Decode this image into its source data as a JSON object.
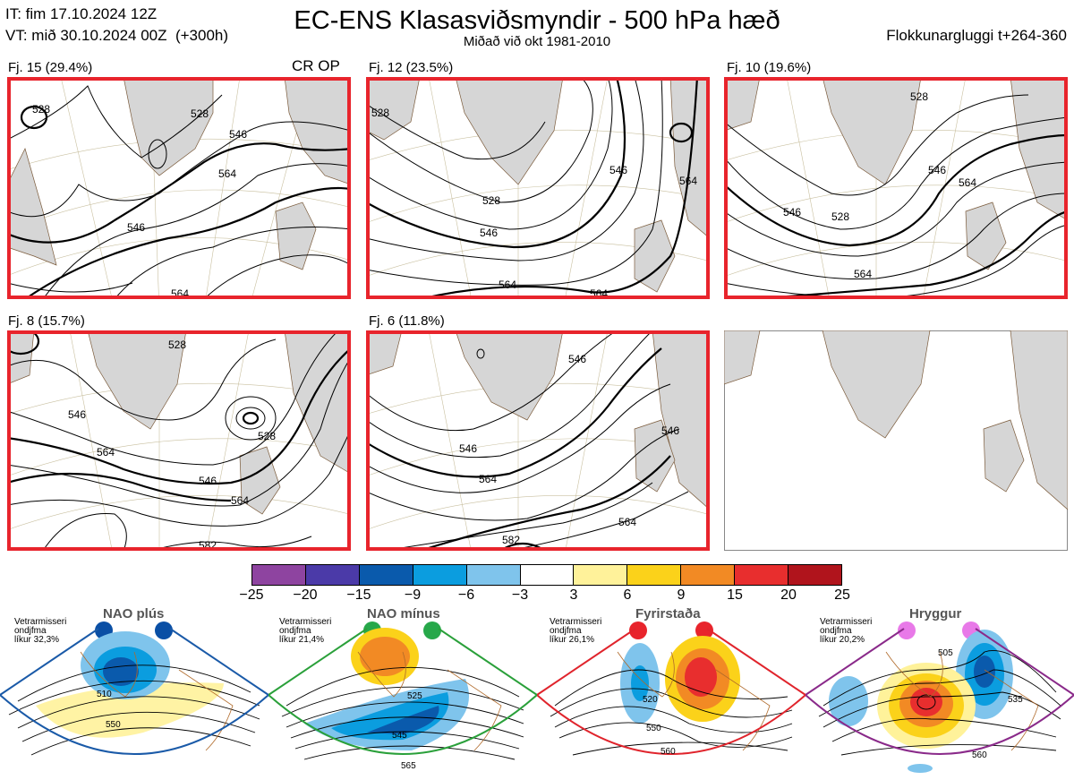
{
  "header": {
    "it_line": "IT: fim 17.10.2024 12Z",
    "vt_line": "VT: mið 30.10.2024 00Z  (+300h)",
    "title": "EC-ENS Klasasviðsmyndir - 500 hPa hæð",
    "subtitle": "Miðað við okt 1981-2010",
    "cluster_window": "Flokkunargluggi t+264-360"
  },
  "panels": [
    {
      "label": "Fj. 15 (29.4%)",
      "tag": "CR OP",
      "contours": [
        "528",
        "546",
        "564",
        "528",
        "546",
        "564"
      ]
    },
    {
      "label": "Fj. 12 (23.5%)",
      "tag": "",
      "contours": [
        "528",
        "546",
        "564",
        "546",
        "528",
        "564",
        "564"
      ]
    },
    {
      "label": "Fj. 10 (19.6%)",
      "tag": "",
      "contours": [
        "528",
        "546",
        "564",
        "546",
        "564",
        "528"
      ]
    },
    {
      "label": "Fj. 8 (15.7%)",
      "tag": "",
      "contours": [
        "546",
        "564",
        "528",
        "546",
        "564",
        "582",
        "528"
      ]
    },
    {
      "label": "Fj. 6 (11.8%)",
      "tag": "",
      "contours": [
        "546",
        "564",
        "546",
        "564",
        "582",
        "546"
      ]
    },
    {
      "label": "",
      "tag": "",
      "contours": []
    }
  ],
  "colorbar": {
    "ticks": [
      "−25",
      "−20",
      "−15",
      "−9",
      "−6",
      "−3",
      "3",
      "6",
      "9",
      "15",
      "20",
      "25"
    ],
    "colors": [
      "#8e44a0",
      "#4b3aa8",
      "#0a5aac",
      "#0b9ddf",
      "#7fc4ec",
      "#ffffff",
      "#fff29a",
      "#fbd21a",
      "#f28a24",
      "#e82e2e",
      "#b0141c"
    ]
  },
  "regimes": [
    {
      "name": "NAO plús",
      "season": "Vetrarmisseri",
      "type": "ondjfma",
      "prob": "líkur 32,3%",
      "border": "#1a5aa8",
      "dot": "#0a4fa5",
      "labels": [
        "510",
        "550"
      ]
    },
    {
      "name": "NAO mínus",
      "season": "Vetrarmisseri",
      "type": "ondjfma",
      "prob": "líkur 21,4%",
      "border": "#2aa03a",
      "dot": "#27a84a",
      "labels": [
        "525",
        "545",
        "565"
      ]
    },
    {
      "name": "Fyrirstaða",
      "season": "Vetrarmisseri",
      "type": "ondjfma",
      "prob": "líkur 26,1%",
      "border": "#e0242c",
      "dot": "#e8242c",
      "labels": [
        "520",
        "550",
        "560"
      ]
    },
    {
      "name": "Hryggur",
      "season": "Vetrarmisseri",
      "type": "ondjfma",
      "prob": "líkur 20,2%",
      "border": "#8a2a8a",
      "dot": "#e879e8",
      "labels": [
        "505",
        "535",
        "560"
      ]
    }
  ]
}
